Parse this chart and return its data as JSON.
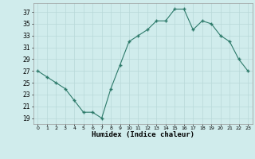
{
  "x": [
    0,
    1,
    2,
    3,
    4,
    5,
    6,
    7,
    8,
    9,
    10,
    11,
    12,
    13,
    14,
    15,
    16,
    17,
    18,
    19,
    20,
    21,
    22,
    23
  ],
  "y": [
    27,
    26,
    25,
    24,
    22,
    20,
    20,
    19,
    24,
    28,
    32,
    33,
    34,
    35.5,
    35.5,
    37.5,
    37.5,
    34,
    35.5,
    35,
    33,
    32,
    29,
    27
  ],
  "line_color": "#2d7a6a",
  "marker_color": "#2d7a6a",
  "bg_color": "#d0ecec",
  "grid_color": "#b8d8d8",
  "xlabel": "Humidex (Indice chaleur)",
  "xlim": [
    -0.5,
    23.5
  ],
  "ylim": [
    18,
    38.5
  ],
  "yticks": [
    19,
    21,
    23,
    25,
    27,
    29,
    31,
    33,
    35,
    37
  ],
  "figsize": [
    3.2,
    2.0
  ],
  "dpi": 100
}
